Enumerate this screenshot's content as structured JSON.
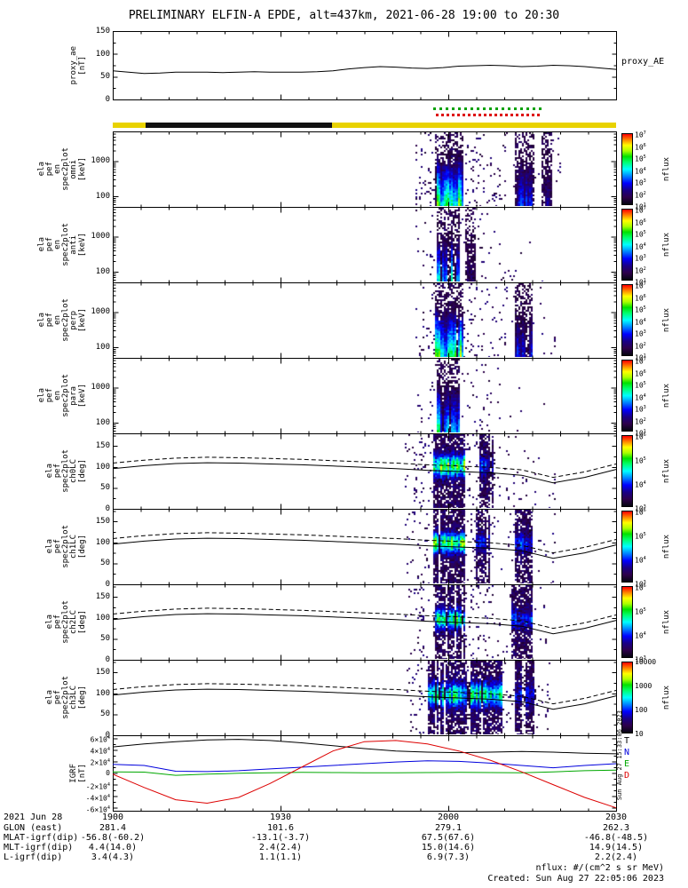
{
  "title": "PRELIMINARY ELFIN-A EPDE, alt=437km, 2021-06-28 19:00 to 20:30",
  "proxy_right_label": "proxy_AE",
  "side_timestamp": "Sun Aug 27 15:33:06 2023",
  "footer": {
    "units_note": "nflux: #/(cm^2 s sr MeV)",
    "created": "Created: Sun Aug 27 22:05:06 2023"
  },
  "science_zone_bar": {
    "colors": {
      "collection": "#e8d200",
      "no_data": "#111111"
    },
    "black_segment": [
      0.065,
      0.435
    ]
  },
  "burst_markers": {
    "green_row": [
      0.637,
      0.856
    ],
    "red_row": [
      0.642,
      0.852
    ],
    "green": "#00a000",
    "red": "#dd0000"
  },
  "ephemeris": {
    "rows": [
      {
        "label": "2021 Jun 28",
        "values": [
          "1900",
          "1930",
          "2000",
          "2030"
        ]
      },
      {
        "label": "GLON (east)",
        "values": [
          "281.4",
          "101.6",
          "279.1",
          "262.3"
        ]
      },
      {
        "label": "MLAT-igrf(dip)",
        "values": [
          "-56.8(-60.2)",
          "-13.1(-3.7)",
          "67.5(67.6)",
          "-46.8(-48.5)"
        ]
      },
      {
        "label": "MLT-igrf(dip)",
        "values": [
          "4.4(14.0)",
          "2.4(2.4)",
          "15.0(14.6)",
          "14.9(14.5)"
        ]
      },
      {
        "label": "L-igrf(dip)",
        "values": [
          "3.4(4.3)",
          "1.1(1.1)",
          "6.9(7.3)",
          "2.2(2.4)"
        ]
      }
    ]
  },
  "chart_data": [
    {
      "type": "line",
      "name": "proxy_AE",
      "label_lines": [
        "proxy_ae"
      ],
      "unit": "[nT]",
      "right_label": "proxy_AE",
      "ylim": [
        0,
        150
      ],
      "yticks": [
        150,
        100,
        50,
        0
      ],
      "x_range": [
        "19:00",
        "20:30"
      ],
      "series": [
        {
          "name": "proxy_AE",
          "color": "#000000",
          "values": [
            63,
            60,
            57,
            58,
            60,
            60,
            60,
            59,
            60,
            61,
            60,
            60,
            60,
            61,
            63,
            67,
            70,
            72,
            71,
            69,
            68,
            70,
            73,
            74,
            75,
            74,
            72,
            73,
            75,
            74,
            72,
            69,
            66
          ]
        }
      ]
    },
    {
      "type": "heatmap",
      "colorbar_label": "nflux",
      "x_ticks": [
        "1900",
        "1930",
        "2000",
        "2030"
      ],
      "x_range": [
        "19:00",
        "20:30"
      ],
      "losscone": {
        "solid": [
          96,
          103,
          108,
          110,
          109,
          107,
          105,
          102,
          99,
          96,
          92,
          89,
          86,
          80,
          62,
          75,
          94
        ],
        "dashed": [
          109,
          116,
          121,
          123,
          122,
          120,
          118,
          115,
          112,
          109,
          105,
          102,
          99,
          93,
          75,
          88,
          107
        ]
      },
      "panels": [
        {
          "name": "ela_pef_en_spec2plot_omni",
          "label_lines": [
            "ela",
            "pef",
            "en",
            "spec2plot",
            "omni"
          ],
          "unit": "[keV]",
          "mode": "energy",
          "yscale": "log",
          "ylim": [
            50,
            7000
          ],
          "yticks": [
            1000,
            100
          ],
          "cbar": [
            "10^7",
            "10^6",
            "10^5",
            "10^4",
            "10^3",
            "10^2",
            "10^1"
          ],
          "burst": [
            0.64,
            0.695
          ],
          "vmax": 0.72,
          "speckle": [
            0.6,
            0.89
          ],
          "density": 0.55,
          "extra": [
            [
              0.797,
              0.838,
              0.32
            ],
            [
              0.853,
              0.872,
              0.18
            ]
          ]
        },
        {
          "name": "ela_pef_en_spec2plot_anti",
          "label_lines": [
            "ela",
            "pef",
            "en",
            "spec2plot",
            "anti"
          ],
          "unit": "[keV]",
          "mode": "energy",
          "yscale": "log",
          "ylim": [
            50,
            7000
          ],
          "yticks": [
            1000,
            100
          ],
          "cbar": [
            "10^7",
            "10^6",
            "10^5",
            "10^4",
            "10^3",
            "10^2",
            "10^1"
          ],
          "burst": [
            0.644,
            0.69
          ],
          "vmax": 0.5,
          "speckle": [
            0.6,
            0.86
          ],
          "density": 0.28,
          "extra": [
            [
              0.7,
              0.72,
              0.12
            ]
          ]
        },
        {
          "name": "ela_pef_en_spec2plot_perp",
          "label_lines": [
            "ela",
            "pef",
            "en",
            "spec2plot",
            "perp"
          ],
          "unit": "[keV]",
          "mode": "energy",
          "yscale": "log",
          "ylim": [
            50,
            7000
          ],
          "yticks": [
            1000,
            100
          ],
          "cbar": [
            "10^7",
            "10^6",
            "10^5",
            "10^4",
            "10^3",
            "10^2",
            "10^1"
          ],
          "burst": [
            0.64,
            0.695
          ],
          "vmax": 0.75,
          "speckle": [
            0.6,
            0.88
          ],
          "density": 0.5,
          "extra": [
            [
              0.797,
              0.835,
              0.3
            ]
          ]
        },
        {
          "name": "ela_pef_en_spec2plot_para",
          "label_lines": [
            "ela",
            "pef",
            "en",
            "spec2plot",
            "para"
          ],
          "unit": "[keV]",
          "mode": "energy",
          "yscale": "log",
          "ylim": [
            50,
            7000
          ],
          "yticks": [
            1000,
            100
          ],
          "cbar": [
            "10^7",
            "10^6",
            "10^5",
            "10^4",
            "10^3",
            "10^2",
            "10^1"
          ],
          "burst": [
            0.644,
            0.69
          ],
          "vmax": 0.55,
          "speckle": [
            0.6,
            0.86
          ],
          "density": 0.3,
          "extra": []
        },
        {
          "name": "ela_pef_spec2plot_ch0LC",
          "label_lines": [
            "ela",
            "pef",
            "spec2plot",
            "ch0LC"
          ],
          "unit": "[deg]",
          "mode": "pitch",
          "yscale": "linear",
          "ylim": [
            0,
            180
          ],
          "yticks": [
            150,
            100,
            50,
            0
          ],
          "cbar": [
            "10^6",
            "10^5",
            "10^4",
            "10^3"
          ],
          "burst": [
            0.636,
            0.7
          ],
          "vmax": 0.62,
          "core": 0.58,
          "cw": 0.1,
          "speckle": [
            0.58,
            0.88
          ],
          "density": 0.45,
          "extra": [
            [
              0.728,
              0.758,
              0.22
            ]
          ]
        },
        {
          "name": "ela_pef_spec2plot_ch1LC",
          "label_lines": [
            "ela",
            "pef",
            "spec2plot",
            "ch1LC"
          ],
          "unit": "[deg]",
          "mode": "pitch",
          "yscale": "linear",
          "ylim": [
            0,
            180
          ],
          "yticks": [
            150,
            100,
            50,
            0
          ],
          "cbar": [
            "10^6",
            "10^5",
            "10^4",
            "10^3"
          ],
          "burst": [
            0.636,
            0.7
          ],
          "vmax": 0.58,
          "core": 0.56,
          "cw": 0.09,
          "speckle": [
            0.58,
            0.88
          ],
          "density": 0.42,
          "extra": [
            [
              0.72,
              0.75,
              0.2
            ],
            [
              0.8,
              0.835,
              0.22
            ]
          ]
        },
        {
          "name": "ela_pef_spec2plot_ch2LC",
          "label_lines": [
            "ela",
            "pef",
            "spec2plot",
            "ch2LC"
          ],
          "unit": "[deg]",
          "mode": "pitch",
          "yscale": "linear",
          "ylim": [
            0,
            180
          ],
          "yticks": [
            150,
            100,
            50,
            0
          ],
          "cbar": [
            "10^6",
            "10^5",
            "10^4",
            "10^3"
          ],
          "burst": [
            0.638,
            0.698
          ],
          "vmax": 0.55,
          "core": 0.55,
          "cw": 0.09,
          "speckle": [
            0.58,
            0.87
          ],
          "density": 0.42,
          "extra": [
            [
              0.79,
              0.835,
              0.25
            ]
          ]
        },
        {
          "name": "ela_pef_spec2plot_ch3LC",
          "label_lines": [
            "ela",
            "pef",
            "spec2plot",
            "ch3LC"
          ],
          "unit": "[deg]",
          "mode": "pitch",
          "yscale": "linear",
          "ylim": [
            0,
            180
          ],
          "yticks": [
            150,
            100,
            50,
            0
          ],
          "cbar": [
            "10000",
            "1000",
            "100",
            "10"
          ],
          "burst": [
            0.626,
            0.775
          ],
          "vmax": 0.5,
          "core": 0.55,
          "cw": 0.11,
          "speckle": [
            0.58,
            0.87
          ],
          "density": 0.6,
          "extra": [
            [
              0.8,
              0.84,
              0.2
            ]
          ]
        }
      ]
    },
    {
      "type": "line",
      "name": "IGRF",
      "label_lines": [
        "IGRF"
      ],
      "unit": "[nT]",
      "ylim": [
        -65000,
        65000
      ],
      "ytick_values": [
        60000,
        40000,
        20000,
        0,
        -20000,
        -40000,
        -60000
      ],
      "ytick_labels": [
        "6×10^4",
        "4×10^4",
        "2×10^4",
        "0",
        "-2×10^4",
        "-4×10^4",
        "-6×10^4"
      ],
      "series": [
        {
          "name": "T",
          "color": "#000000",
          "values": [
            45000,
            50000,
            54000,
            57000,
            58000,
            56000,
            52000,
            47000,
            42000,
            38000,
            36000,
            35000,
            36000,
            37000,
            36000,
            34000,
            33000
          ]
        },
        {
          "name": "N",
          "color": "#0000dd",
          "values": [
            15000,
            13000,
            3000,
            2500,
            4000,
            7000,
            10000,
            13000,
            16000,
            19000,
            21000,
            20000,
            17000,
            13000,
            9000,
            13000,
            16000
          ]
        },
        {
          "name": "E",
          "color": "#00a800",
          "values": [
            2000,
            1500,
            -4000,
            -2000,
            -500,
            500,
            1000,
            800,
            500,
            500,
            800,
            1000,
            800,
            500,
            2000,
            4000,
            5000
          ]
        },
        {
          "name": "D",
          "color": "#dd0000",
          "values": [
            -2000,
            -25000,
            -46000,
            -52000,
            -42000,
            -18000,
            10000,
            38000,
            54000,
            56000,
            50000,
            38000,
            22000,
            2000,
            -20000,
            -42000,
            -60000
          ]
        }
      ]
    }
  ]
}
